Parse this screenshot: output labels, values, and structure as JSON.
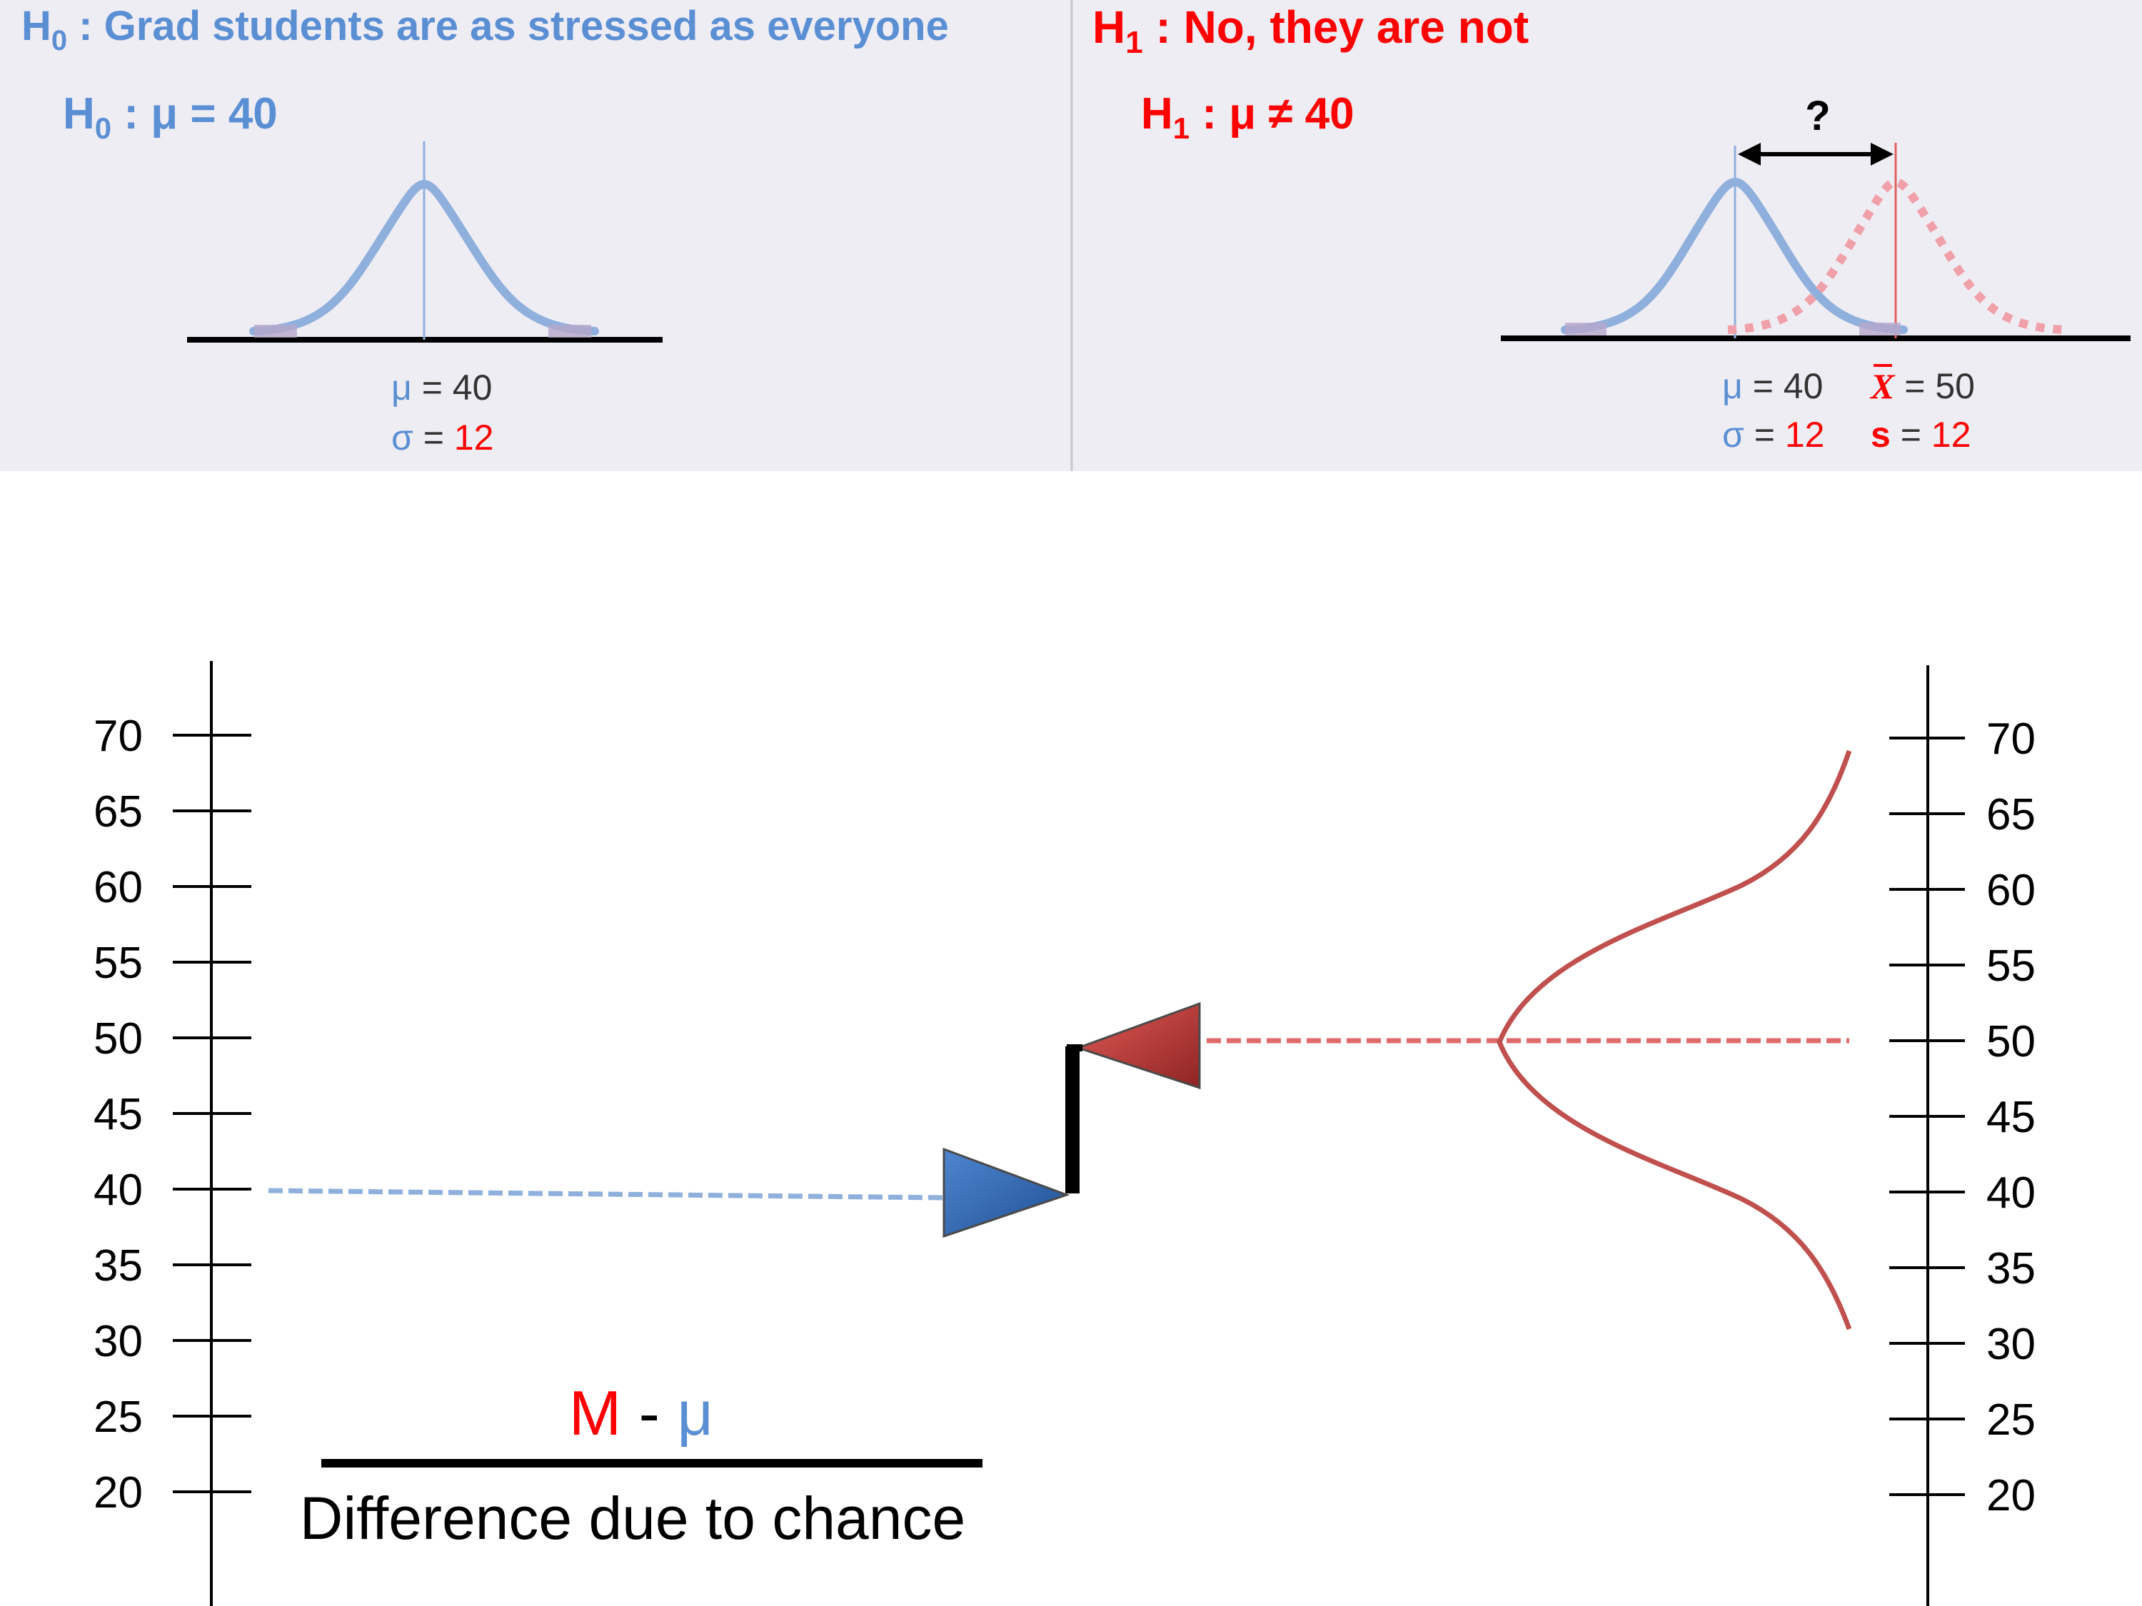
{
  "colors": {
    "blue": "#5b8fd4",
    "red": "#ff0000",
    "curve_blue": "#8fb0dc",
    "curve_red": "#c0504d",
    "panel_bg": "#efedf4"
  },
  "h0": {
    "title_h": "H",
    "title_sub": "0",
    "title_text": " : Grad students are as stressed as everyone",
    "stat_h": "H",
    "stat_sub": "0",
    "stat_text": " : μ = 40",
    "mu_sym": "μ",
    "mu_eq": " = 40",
    "sigma_sym": "σ",
    "sigma_eq": " = ",
    "sigma_val": "12"
  },
  "h1": {
    "title_h": "H",
    "title_sub": "1",
    "title_text": " : No, they are not",
    "stat_h": "H",
    "stat_sub": "1",
    "stat_text": " : μ ≠ 40",
    "question": "?",
    "mu_sym": "μ",
    "mu_eq": " = 40",
    "xbar_sym": "X",
    "xbar_eq": " = 50",
    "sigma_sym": "σ",
    "sigma_eq": " = ",
    "sigma_val": "12",
    "s_sym": "s",
    "s_eq": " = ",
    "s_val": "12"
  },
  "scale": {
    "ticks": [
      "70",
      "65",
      "60",
      "55",
      "50",
      "45",
      "40",
      "35",
      "30",
      "25",
      "20"
    ]
  },
  "markers": {
    "mu_level": 40,
    "sample_level": 50
  },
  "formula": {
    "numerator_m": "M",
    "numerator_minus": " - ",
    "numerator_mu": "μ",
    "denominator": "Difference due to chance"
  }
}
